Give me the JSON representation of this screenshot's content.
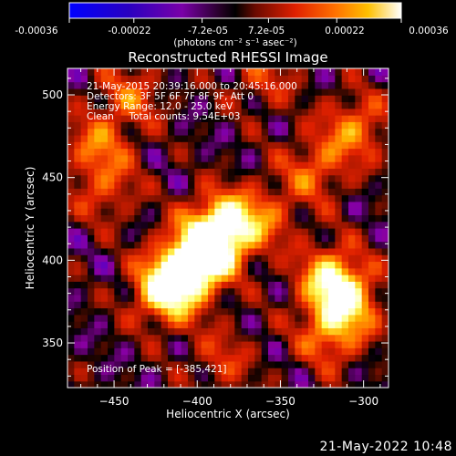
{
  "colorbar": {
    "ticks": [
      "-0.00036",
      "-0.00022",
      "-7.2e-05",
      "7.2e-05",
      "0.00022",
      "0.00036"
    ],
    "tick_values": [
      -0.00036,
      -0.00022,
      -7.2e-05,
      7.2e-05,
      0.00022,
      0.00036
    ],
    "range": [
      -0.00036,
      0.00036
    ],
    "unit_line": "(photons cm⁻² s⁻¹ asec⁻²)"
  },
  "chart_data": {
    "type": "heatmap",
    "title": "Reconstructed RHESSI Image",
    "xlabel": "Heliocentric X (arcsec)",
    "ylabel": "Heliocentric Y (arcsec)",
    "xlim": [
      -478,
      -285
    ],
    "ylim": [
      323,
      516
    ],
    "xticks": [
      -450,
      -400,
      -350,
      -300
    ],
    "yticks": [
      350,
      400,
      450,
      500
    ],
    "xtick_labels": [
      "−450",
      "−400",
      "−350",
      "−300"
    ],
    "ytick_labels": [
      "350",
      "400",
      "450",
      "500"
    ],
    "colormap": [
      "#0000ff",
      "#2a00c0",
      "#5800c8",
      "#8a00a0",
      "#000000",
      "#9a1500",
      "#e02000",
      "#ff6000",
      "#ffb000",
      "#ffff60",
      "#ffffff"
    ],
    "annotations": [
      "21-May-2015 20:39:16.000 to 20:45:16.000",
      "Detectors: 3F 5F 6F 7F 8F 9F, Att 0",
      "Energy Range: 12.0 - 25.0 keV",
      "Clean     Total counts: 9.54E+03"
    ],
    "peak_label": "Position of Peak = [-385,421]",
    "peak": [
      -385,
      421
    ],
    "sources": [
      {
        "x": -385,
        "y": 421,
        "amp": 1.0
      },
      {
        "x": -395,
        "y": 405,
        "amp": 0.9
      },
      {
        "x": -410,
        "y": 392,
        "amp": 0.85
      },
      {
        "x": -420,
        "y": 380,
        "amp": 0.75
      },
      {
        "x": -360,
        "y": 426,
        "amp": 0.45
      },
      {
        "x": -320,
        "y": 390,
        "amp": 0.75
      },
      {
        "x": -310,
        "y": 375,
        "amp": 0.7
      },
      {
        "x": -320,
        "y": 355,
        "amp": 0.55
      },
      {
        "x": -330,
        "y": 455,
        "amp": 0.5
      },
      {
        "x": -305,
        "y": 480,
        "amp": 0.6
      },
      {
        "x": -460,
        "y": 470,
        "amp": 0.5
      },
      {
        "x": -455,
        "y": 443,
        "amp": 0.4
      },
      {
        "x": -440,
        "y": 500,
        "amp": 0.45
      },
      {
        "x": -360,
        "y": 510,
        "amp": 0.35
      },
      {
        "x": -385,
        "y": 340,
        "amp": 0.35
      }
    ]
  },
  "footer_timestamp": "21-May-2022 10:48"
}
